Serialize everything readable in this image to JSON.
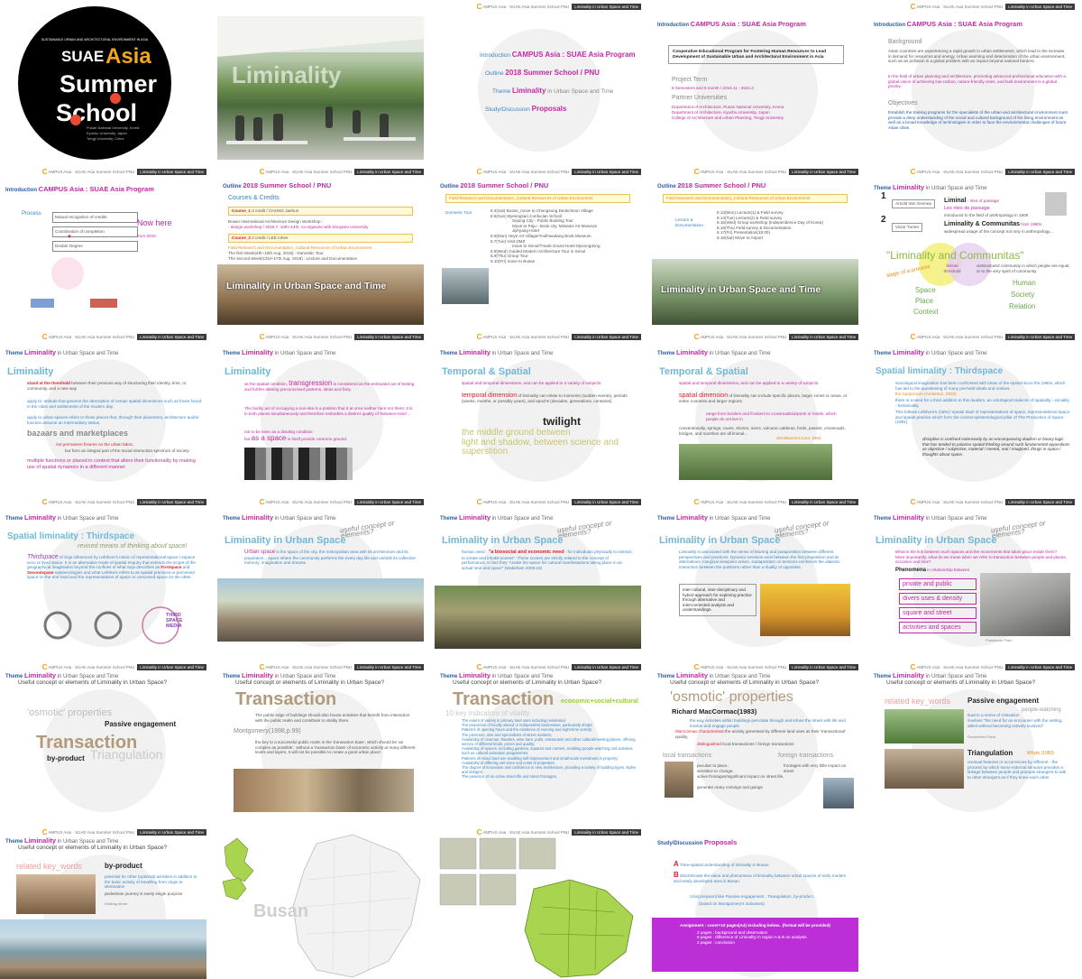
{
  "header": {
    "c": "C",
    "text": "AMPUS Asia · SUAE Asia Summer School PNU",
    "tag": "Liminality in Urban Space and Time"
  },
  "theme_bar": {
    "label": "Theme",
    "main": "Liminality",
    "sub": "in Urban Space and Time"
  },
  "useful_q": "Useful concept or elements of Liminality in Urban Space?",
  "logo": {
    "line_top": "SUSTAINABLE URBAN AND ARCHITECTURAL ENVIRONMENT IN ASIA",
    "w1": "SUAE",
    "w2": "Asia",
    "w3": "Summer",
    "w4": "School",
    "u1": "Pusan National University, Korea",
    "u2": "Kyushu University, Japan",
    "u3": "Tongji University, China"
  },
  "s_liminality": {
    "word": "Liminality"
  },
  "s_intro": {
    "r1l": "Introduction",
    "r1": "CAMPUS Asia : SUAE Asia Program",
    "r2l": "Outline",
    "r2": "2018 Summer School / PNU",
    "r3l": "Theme",
    "r3": "Liminality",
    "r3b": "in Urban Space and Time",
    "r4l": "Study/Discussion",
    "r4": "Proposals"
  },
  "s_program": {
    "title_l": "Introduction",
    "title": "CAMPUS Asia : SUAE Asia Program",
    "box": "Cooperative Educational Program for Fostering Human Resources to Lead Development of Sustainable Urban and Architectural Environment in Asia",
    "pt": "Project Term",
    "pt_v": "8 Semesters and 8 month / 2016.11 - 2021.2",
    "pu": "Partner Universities",
    "pu1": "Department of Architecture, Pusan National University, Korea",
    "pu2": "Department of Architecture, Kyushu University, Japan",
    "pu3": "College of Architecture and Urban Planning, Tongji University"
  },
  "s_background": {
    "title_l": "Introduction",
    "title": "CAMPUS Asia : SUAE Asia Program",
    "bg": "Background",
    "bg_t1": "Asian countries are experiencing a rapid growth in urban settlements, which lead to the increase in demand for resources and energy. Urban warming and deterioration of the urban environment, such as air pollution is a global problem with an impact beyond national borders.",
    "bg_t2": "In the field of urban planning and architecture, promoting advanced professional education with a global vision of achieving low-carbon, nature-friendly cities, and built environment is a global priority.",
    "ob": "Objectives",
    "ob_t": "Establish the training programs for the specialists of the urban and architectural environment must provide a deep understanding of the social and cultural background of the living environment as well as a broad knowledge of technologies in order to face the environmental challenges of future Asian cities."
  },
  "s_process": {
    "title_l": "Introduction",
    "title": "CAMPUS Asia : SUAE Asia Program",
    "proc": "Process",
    "b1": "Mutual recognition of credits",
    "b2": "Coordination of completion",
    "b3": "Double Degree",
    "now": "Now here",
    "from": "from 2018"
  },
  "s_outline1": {
    "title_l": "Outline",
    "title": "2018 Summer School / PNU",
    "cc": "Courses & Credits",
    "c1": "Course_1",
    "c1v": "3 credit / CHUNG Jaehun",
    "c1t": "Busan International Architecture Design Workshop :",
    "c1t2": "- design workshop / 2018.7. 10th~14th, co-organize with Dongseo University",
    "c2": "Course_2",
    "c2v": "2 credit / LEE Inhee",
    "c2t": "Field Research and Documentation_Cultural Resources of Urban Environment",
    "c2t2": "The first Week(4th~10th Aug. 2018) : Domestic Tour",
    "c2t3": "The second Week(13rd~17th Aug. 2018) : Lecture and Documentation",
    "band": "Liminality in Urban Space and Time"
  },
  "s_outline2": {
    "title_l": "Outline",
    "title": "2018 Summer School / PNU",
    "bar": "Field Research and Documentation_Cultural Resources of Urban Environment",
    "dt": "Domestic Tour",
    "rows": [
      "8.4(Sat)  Busan_move to Chengsong Deokcheon Village",
      "8.5(Sun)  Byeongsan Confucian School",
      "Sejong City - Public Building Tour",
      "Move to Paju - Book city, Mimesis Art Museum",
      "Jijihyang Hotel",
      "8.6(Mon)  Heyri Art Village/Youlhwadang Book Museum",
      "8.7(Tue)  Visit DMZ",
      "move to Seoul/Tmark Grand Hotel Myeongdong",
      "8.8(Wed)  Guided Modern Architecture Tour in Seoul",
      "8.9(Thu)  Group Tour",
      "8.10(Fri)  move to Busan"
    ]
  },
  "s_outline3": {
    "title_l": "Outline",
    "title": "2018 Summer School / PNU",
    "bar": "Field Research and Documentation_Cultural Resources of Urban Environment",
    "ld": "Lecture & Documentation",
    "rows": [
      "8.13(Mon)  Lecture(1) & Field survey",
      "8.14(Tue)  Lecture(2) & Field survey",
      "8.15(Wed)  Group workshop (Independence Day of Korea)",
      "8.16(Thu)  Field survey & Documentation",
      "8.17(Fri)  Presentation(15:00)",
      "8.18(Sat)  Move to Airport"
    ],
    "band": "Liminality in Urban Space and Time"
  },
  "s_gennep": {
    "n1": "1",
    "a1": "Arnold Van Gennep",
    "w1": "Liminal",
    "w1b": "- rites of passage",
    "w1c": "Les rites de passage",
    "w1d": "introduced to the field of anthropology in 1909",
    "n2": "2",
    "a2": "Victor Turner",
    "w2": "Liminality & Communitas",
    "w2b": "from 1960s",
    "w2c": "widespread usage of the concept not only in anthropology...",
    "lc": "\"Liminality and Communitas\"",
    "lt": "liminal threshold",
    "sp": "stage of a process",
    "uc": "unstructured community in which people are equal, or to the very spirit of community",
    "space": "Space",
    "place": "Place",
    "context": "Context",
    "human": "Human",
    "society": "Society",
    "relation": "Relation"
  },
  "s_lim1": {
    "title": "Liminality",
    "t1": "stand at the threshold",
    "t1b": "between their previous way of structuring their identity, time, or community, and a new way",
    "t2": "apply to: attitude that governs the description of certain spatial dimensions such as those found in the cities and settlements of the modern day.",
    "t3": "apply to urban spaces refers to those places that, through their placement, architecture and/or function assume an intermediary status.",
    "bz": "bazaars and marketplaces",
    "bz1": "not permanent fixtures on the urban fabric,",
    "bz2": "but form an integral part of the social interaction spectrum of society",
    "bz3": "multiple functions or placed in context that alters their functionality by making use of spatial dynamics in a different manner"
  },
  "s_lim2": {
    "title": "Liminality",
    "t1": "as the spatial condition,",
    "t1b": "transgression",
    "t1c": "is considered as the embodied act of testing and further altering preconceived patterns, ideas and fixity.",
    "t2": "The bodily act of occupying a non-site is a position that it at once neither here nor there; it is in both places simultaneously and therefore embodies a distinct quality of 'between-ness'...",
    "t3": "not to be seen as a dividing condition",
    "t4": "but",
    "t5": "as a space",
    "t6": "in itself provide common ground."
  },
  "s_temporal": {
    "title": "Temporal & Spatial",
    "t1": "spatial and temporal dimensions, and can be applied to a variety of subjects.",
    "td": "temporal dimension",
    "td2": "of liminality can relate to moments (sudden events), periods (weeks, months, or possibly years), and epochs (decades, generations, centuries)",
    "tw": "twilight",
    "mg": "the middle ground between",
    "ls": "light and shadow, between science and superstition"
  },
  "s_spatial": {
    "title": "Temporal & Spatial",
    "t1": "spatial and temporal dimensions, and can be applied to a variety of subjects.",
    "sd": "spatial dimension",
    "sd2": "of liminality can include specific places, larger zones or areas, or entire countries and larger regions.",
    "t2": "range from borders and frontiers to crossroads/airports or hotels, which people do not live in",
    "t3": "conventionally, springs, caves, shores, rivers, volcanic calderas, fords, passes, crossroads, bridges, and marshes are all liminal...",
    "dmz": "demilitarized zone, DMZ"
  },
  "s_thirdspace1": {
    "title": "Spatial liminality : Thirdspace",
    "t1": "sociological imagination has been confronted with ideas of the spatial since the 1960s, which has led to the questioning of many pre-held ideals and notions.",
    "t2": "the Spatial turn (Anderson, 2002)",
    "t3": "there is a need for a third addition to this dualism, an ontological trialectic of spatiality - sociality - historicality.",
    "t4": "This follows Lefebvre's (1991) 'spatial triad' of representations of space, representational space and spatial practice which form the central epistemological pillar of The Production of Space (1991).",
    "q": "discipline is confined extensively by an encompassing dualism or binary logic that has tended to polarise spatial thinking around such fundamental oppositions as objective / subjective, material / mental, real / imagined, things in space / thoughts about space."
  },
  "s_thirdspace2": {
    "title": "Spatial liminality : Thirdspace",
    "sub": "revised means of thinking about space!",
    "ts": "Thirdspace",
    "t1": "of Soja influenced by Lefebvre's notion of representational space / espace vecu or lived space.",
    "t2": "It is an alternative mode of spatial enquiry that extends the scope of the geographical imagination beyond the confines of what Soja describes as",
    "fs": "Firstspace",
    "and": "and",
    "ss": "Secondspace",
    "t3": "epistemologies and what Lefebvre refers to as spatial practices or perceived space on the one hand and the representations of space or conceived space on the other.",
    "logo1": "THIRD",
    "logo2": "SPACE",
    "logo3": "MEDIA"
  },
  "s_urban1": {
    "q": "useful concept or elements?",
    "title": "Liminality in Urban Space",
    "us": "Urban space",
    "t1": "is the space of the city, the metropolitan area with its architecture and its population... space where the community performs the every day life and unfolds its collective memory, imagination and dreams."
  },
  "s_urban2": {
    "q": "useful concept or elements?",
    "title": "Liminality in Urban Space",
    "t0": "human need -",
    "t1": "\"a biosocial and economic need",
    "t2": "- for individuals physically to interact, to create and inhabit scenes\". These scenes are strictly related to the concept of performance, in fact they \"create the space for cultural manifestations taking place in an actual time and space\" (Wakeham 2005:15)"
  },
  "s_urban3": {
    "q": "useful concept or elements?",
    "title": "Liminality in Urban Space",
    "t1": "Liminality is associated with the sense of blurring and juxtaposition between different perspectives and practices. Dynamic tensions exist between the first proposition and its alternatives; marginal viewpoint arises. Juxtaposition on tensions reinforces the dialectic interaction between the positions rather than a duality of opposites.",
    "box": "inter-cultural, inter-disciplinary and hybrid approach for exploring practice through alternative and interconnected analysis and understandings."
  },
  "s_urban4": {
    "q": "useful concept or elements?",
    "title": "Liminality in Urban Space",
    "t1": "What is the link between such spaces and the movements that takes place inside them? More importantly, what do we mean when we refer to transaction between people and places, occasion and time?",
    "ph": "Phenomena",
    "ph2": "in relationship between",
    "k1": "private and public",
    "k2": "divers uses & density",
    "k3": "square and street",
    "k4": "activities and spaces",
    "cap": "Potsdamer Platz"
  },
  "s_useful1": {
    "osm": "'osmotic' properties",
    "pe": "Passive engagement",
    "tr": "Transaction",
    "bp": "by-product",
    "tg": "Triangulation"
  },
  "s_trans1": {
    "tr": "Transaction",
    "t1": "The public edge of buildings should also house activities that benefit from interaction with the public realm and contribute to vitality there.",
    "mg": "Montgomery(1998,p.99)",
    "t2": "the key to a successful public realm is the 'transaction base', which should be 'as complex as possible', 'without a 'transaction base' of economic activity at many different levels and layers, it will not be possible to create a good urban place'."
  },
  "s_trans2": {
    "tr": "Transaction",
    "ec": "economic+social+cultural",
    "k": "10 key indicators of vitality",
    "items": [
      "The extent of variety in primary land uses including residential;",
      "The proportion of locally owned or independent businesses, particularly shops;",
      "Patterns of opening hours and the existence of evening and night-time activity;",
      "The presence, size and specialisms of street markets;",
      "Availability of cinemas, theatres, wine bars, pubs, restaurants and other cultural/meeting places, offering service of different kinds, prices and quality;",
      "Availability of spaces, including gardens, squares and corners, enabling people-watching and activities such as cultural animation programmes;",
      "Patterns of mixed land use enabling self-improvement and small-scale investment in property;",
      "Availability of differing unit sizes and costs of properties;",
      "The degree of innovation and confidence in new architecture, providing a variety of building types, styles and designs;",
      "The presence of an active street life and street frontages."
    ]
  },
  "s_osmotic": {
    "osm": "'osmotic' properties",
    "rm": "Richard MacCormac(1983)",
    "t1": "the way activities within buildings percolate through and infuse the street with life and involve and engage people.",
    "mc": "MacCormac characterised",
    "t2": "the activity generated by different land uses as their 'transactional' quality,",
    "dist": "distinguished",
    "t3": "local transactions / foreign transactions",
    "lt": "local transactions",
    "ft": "foreign transactions",
    "l1": "peculiar to place,",
    "l2": "sensitive to change,",
    "l3": "active frontages/significant impact on street life,",
    "l4": "generate many comings and goings",
    "f1": "frontages with very little impact on street"
  },
  "s_passive": {
    "rk": "related key_words",
    "pe": "Passive engagement",
    "pw": "people-watching",
    "t1": "lead to a sense of relaxation",
    "t2": "involves \"the need for an encounter with the setting, albeit without becoming actively involved\"",
    "cap1": "Rockefeller Plaza",
    "tg": "Triangulation",
    "wh": "Whyte (1980)",
    "t3": "unusual features or occurrences by different - the process by which some external stimulus provides a linkage between people and prompts strangers to talk to other strangers as if they knew each other"
  },
  "s_byproduct": {
    "rk": "related key_words",
    "bp": "by-product",
    "t1": "potential for other (optional) activities in addition to the basic activity of travelling from origin to destination",
    "t2": "pedestrian journey is rarely single purpose",
    "cap": "Walking street"
  },
  "s_busan": {
    "label": "Busan"
  },
  "s_proposal": {
    "title_l": "Study/Discussion",
    "title": "Proposals",
    "a": "A",
    "at": "Time-spatial understanding of liminality in Busan.",
    "b": "B",
    "bt": "Discriminate the value and phenomena of liminality between urban spaces of early modern and newly developed area in Busan.",
    "kw": "Using keyword like Passive engagement , Triangulation, by-product ..",
    "mg": "(based on Montgomery's indicators)",
    "as": "Assignment : cover+10 pages(A4) including below.. (format will be provided)",
    "p1": "2 pages : background and observation",
    "p2": "6 pages : difference of Liminality in region A & B on analysis.",
    "p3": "2 pages : conclusion"
  }
}
